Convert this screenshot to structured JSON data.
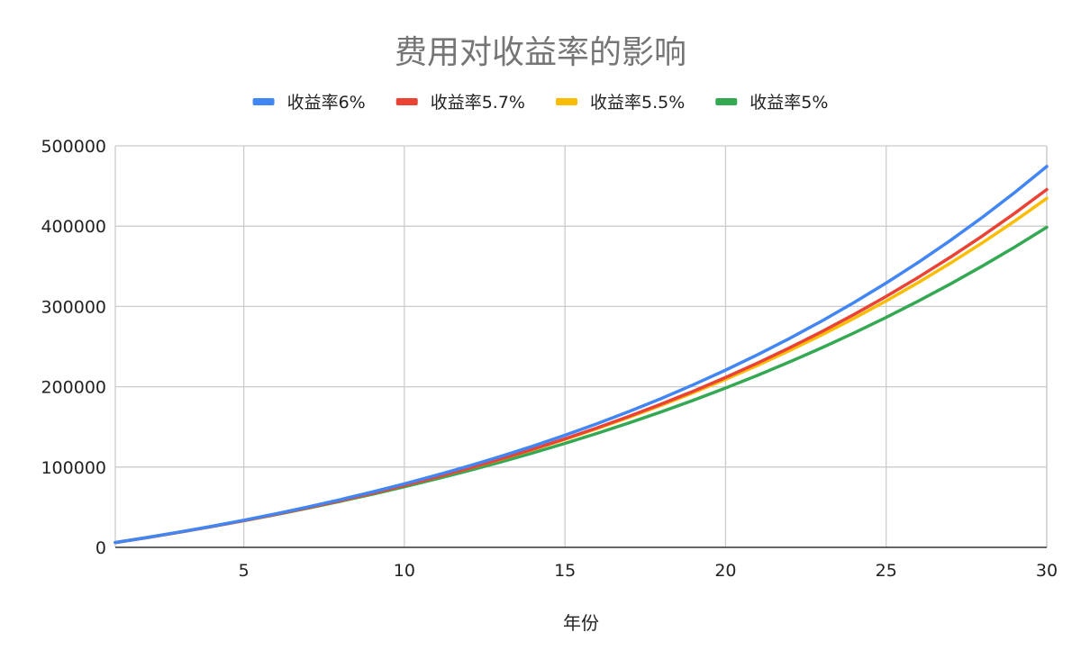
{
  "chart_data": {
    "type": "line",
    "title": "费用对收益率的影响",
    "xlabel": "年份",
    "ylabel": "",
    "xlim": [
      1,
      30
    ],
    "ylim": [
      0,
      500000
    ],
    "x_ticks": [
      5,
      10,
      15,
      20,
      25,
      30
    ],
    "y_ticks": [
      0,
      100000,
      200000,
      300000,
      400000,
      500000
    ],
    "x_tick_labels": [
      "5",
      "10",
      "15",
      "20",
      "25",
      "30"
    ],
    "y_tick_labels": [
      "0",
      "100000",
      "200000",
      "300000",
      "400000",
      "500000"
    ],
    "grid": true,
    "legend_position": "top",
    "x": [
      1,
      2,
      3,
      4,
      5,
      6,
      7,
      8,
      9,
      10,
      11,
      12,
      13,
      14,
      15,
      16,
      17,
      18,
      19,
      20,
      21,
      22,
      23,
      24,
      25,
      26,
      27,
      28,
      29,
      30
    ],
    "series": [
      {
        "name": "收益率6%",
        "color": "#4285F4",
        "values": [
          6000,
          12360,
          19102,
          26248,
          33823,
          41852,
          50363,
          59385,
          68948,
          79085,
          89830,
          101220,
          113293,
          126091,
          139656,
          154035,
          169278,
          185434,
          202560,
          220714,
          239957,
          260354,
          281975,
          304893,
          329187,
          354938,
          382235,
          411169,
          441839,
          474349
        ]
      },
      {
        "name": "收益率5.7%",
        "color": "#EA4335",
        "values": [
          5940,
          12219,
          18855,
          25869,
          33284,
          41121,
          49405,
          58161,
          67416,
          77199,
          87540,
          98470,
          110024,
          122237,
          135146,
          148791,
          163215,
          178460,
          194575,
          211608,
          229613,
          248644,
          268761,
          290025,
          312501,
          336259,
          361373,
          387918,
          415977,
          445636
        ]
      },
      {
        "name": "收益率5.5%",
        "color": "#FBBC04",
        "values": [
          6000,
          12330,
          19008,
          26054,
          33487,
          41329,
          49602,
          58330,
          67538,
          77253,
          87502,
          98315,
          109722,
          121757,
          134453,
          147848,
          161980,
          176889,
          192618,
          209212,
          226719,
          245189,
          264674,
          285231,
          306919,
          329799,
          353938,
          379405,
          406272,
          434617
        ]
      },
      {
        "name": "收益率5%",
        "color": "#34A853",
        "values": [
          6000,
          12300,
          18915,
          25861,
          33154,
          40811,
          48852,
          57295,
          66159,
          75467,
          85241,
          95503,
          106278,
          117592,
          129471,
          141945,
          155042,
          168794,
          183234,
          198396,
          214316,
          231031,
          248583,
          267012,
          286363,
          306681,
          328015,
          350415,
          373936,
          398633
        ]
      }
    ]
  }
}
